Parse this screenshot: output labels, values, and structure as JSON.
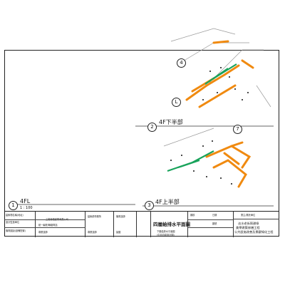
{
  "views": {
    "v4": {
      "num": "4",
      "label": ""
    },
    "vL": {
      "num": "L",
      "label": ""
    },
    "v2": {
      "num": "2",
      "label": "4F下半部"
    },
    "v7": {
      "num": "7",
      "label": ""
    },
    "v1": {
      "num": "1",
      "label": "4FL",
      "scale": "1 : 100"
    },
    "v3": {
      "num": "3",
      "label": "4F上半部"
    }
  },
  "colors": {
    "orange": "#f08a10",
    "green": "#19a35b",
    "black": "#111111"
  },
  "title_block": {
    "col1": [
      "建築物名稱(地址)",
      "設計監造單位",
      "機電圖說(設備配置)"
    ],
    "col2": [
      "工程管理顧問有限公司",
      "統一編號/聯絡電話",
      "專業技師"
    ],
    "col3": [
      "建築師事務所",
      "專業技師"
    ],
    "col4": [
      "機電技師",
      "製圖"
    ],
    "col5": [
      "",
      ""
    ],
    "drawing_title": "四層給排水平面圖",
    "drawing_sub": "下層給排水平面圖",
    "drawing_sub2": "(引用自原設計圖)",
    "col7": [
      "審核",
      "",
      "日期",
      "",
      "圖號",
      ""
    ],
    "col8": [
      "業主/委託單位",
      ""
    ],
    "project_name": [
      "淡水老街周邊綠",
      "美學建築修繕工程",
      "公共設施改善及景觀綠化工程"
    ]
  }
}
